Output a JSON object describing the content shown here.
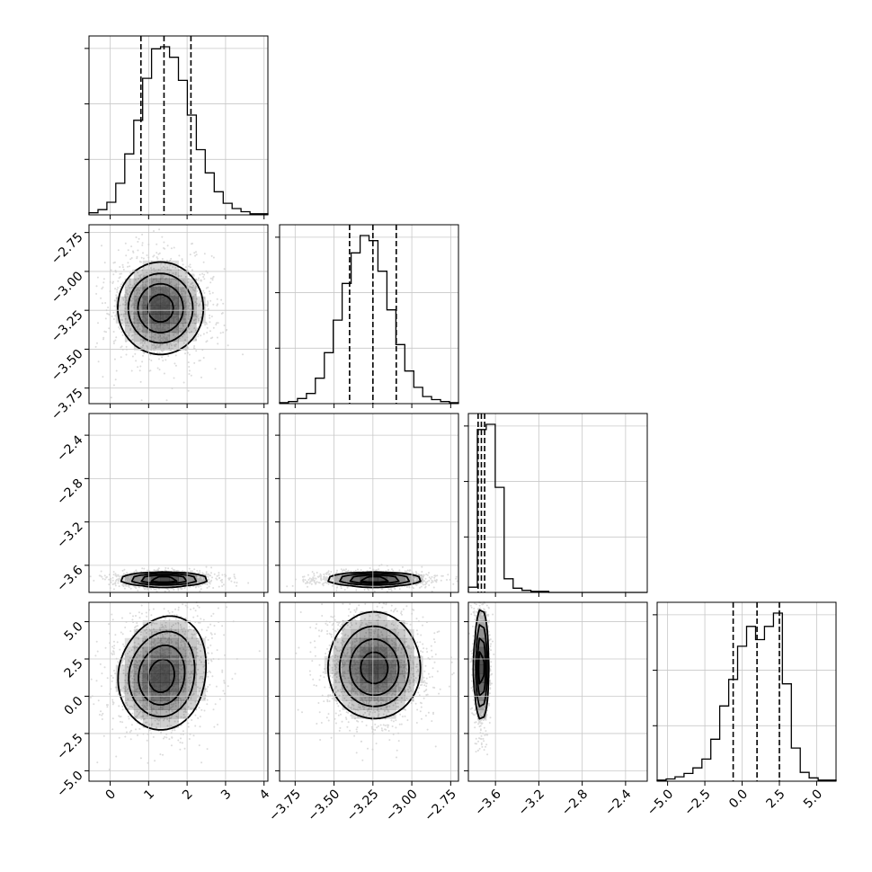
{
  "chart_data": {
    "type": "corner",
    "title": "",
    "colors": {
      "line": "#000000",
      "grid": "#c8c8c8",
      "scatter": "#7f7f7f",
      "density_dark": "#1a1a1a",
      "background": "#ffffff"
    },
    "grid": true,
    "params": [
      {
        "range": [
          -0.55,
          4.1
        ],
        "ticks": [
          0,
          1,
          2,
          3,
          4
        ],
        "tick_labels": [
          "0",
          "1",
          "2",
          "3",
          "4"
        ],
        "mean": 1.4,
        "sd": 0.6,
        "quantiles": [
          0.8,
          1.4,
          2.1
        ]
      },
      {
        "range": [
          -3.85,
          -2.7
        ],
        "ticks": [
          -3.75,
          -3.5,
          -3.25,
          -3.0,
          -2.75
        ],
        "tick_labels": [
          "−3.75",
          "−3.50",
          "−3.25",
          "−3.00",
          "−2.75"
        ],
        "mean": -3.24,
        "sd": 0.16,
        "quantiles": [
          -3.4,
          -3.25,
          -3.1
        ]
      },
      {
        "range": [
          -3.85,
          -2.2
        ],
        "ticks": [
          -3.6,
          -3.2,
          -2.8,
          -2.4
        ],
        "tick_labels": [
          "−3.6",
          "−3.2",
          "−2.8",
          "−2.4"
        ],
        "mean": -3.73,
        "sd": 0.035,
        "quantiles": [
          -3.76,
          -3.73,
          -3.7
        ]
      },
      {
        "range": [
          -5.7,
          6.3
        ],
        "ticks": [
          -5.0,
          -2.5,
          0.0,
          2.5,
          5.0
        ],
        "tick_labels": [
          "−5.0",
          "−2.5",
          "0.0",
          "2.5",
          "5.0"
        ],
        "mean": 1.0,
        "sd": 1.7,
        "quantiles": [
          -0.6,
          1.0,
          2.5
        ]
      }
    ],
    "histograms": [
      {
        "param": 0,
        "bins": 20,
        "counts": [
          2,
          5,
          12,
          30,
          58,
          90,
          130,
          158,
          160,
          150,
          128,
          95,
          62,
          40,
          22,
          11,
          6,
          3,
          1,
          1
        ],
        "ytick_fractions": [
          0.33,
          0.66,
          0.99
        ]
      },
      {
        "param": 1,
        "bins": 20,
        "counts": [
          1,
          2,
          5,
          10,
          25,
          50,
          82,
          118,
          148,
          165,
          160,
          130,
          92,
          58,
          32,
          16,
          7,
          4,
          2,
          1
        ],
        "ytick_fractions": [
          0.33,
          0.66,
          0.99
        ]
      },
      {
        "param": 2,
        "bins": 20,
        "counts": [
          5,
          155,
          160,
          100,
          13,
          4,
          2,
          1,
          1,
          0,
          0,
          0,
          0,
          0,
          0,
          0,
          0,
          0,
          0,
          0
        ],
        "ytick_fractions": [
          0.33,
          0.66,
          0.99
        ]
      },
      {
        "param": 3,
        "bins": 20,
        "counts": [
          1,
          2,
          4,
          7,
          12,
          20,
          38,
          68,
          92,
          122,
          140,
          128,
          140,
          152,
          88,
          30,
          8,
          3,
          1,
          1
        ],
        "ytick_fractions": [
          0.33,
          0.66,
          0.99
        ]
      }
    ],
    "contour_levels": [
      0.18,
      0.38,
      0.62,
      0.86
    ],
    "quantile_lines": "dashed"
  }
}
